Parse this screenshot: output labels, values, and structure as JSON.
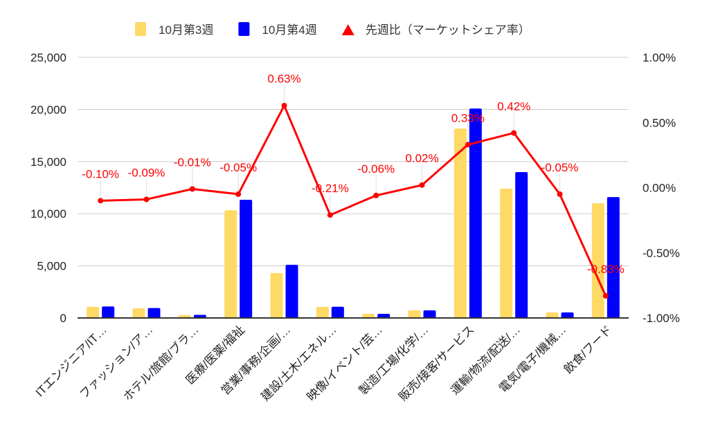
{
  "chart_data": {
    "type": "bar",
    "title": "",
    "categories": [
      "ITエンジニア/IT…",
      "ファッション/ア…",
      "ホテル/旅館/ブラ…",
      "医療/医薬/福祉",
      "営業/事務/企画/…",
      "建設/土木/エネル…",
      "映像/イベント/芸…",
      "製造/工場/化学/…",
      "販売/接客/サービス",
      "運輸/物流/配送/…",
      "電気/電子/機械…",
      "飲食/フード"
    ],
    "series": [
      {
        "name": "10月第3週",
        "type": "bar",
        "axis": "left",
        "color": "#ffd966",
        "values": [
          1060,
          930,
          270,
          10340,
          4310,
          1060,
          400,
          730,
          18170,
          12400,
          530,
          11010
        ]
      },
      {
        "name": "10月第4週",
        "type": "bar",
        "axis": "left",
        "color": "#0000ff",
        "values": [
          1100,
          950,
          300,
          11340,
          5100,
          1080,
          400,
          730,
          20090,
          13990,
          530,
          11600
        ]
      },
      {
        "name": "先週比（マーケットシェア率）",
        "type": "line",
        "axis": "right",
        "color": "#ff0000",
        "values": [
          -0.1,
          -0.09,
          -0.01,
          -0.05,
          0.63,
          -0.21,
          -0.06,
          0.02,
          0.33,
          0.42,
          -0.05,
          -0.83
        ],
        "labels": [
          "-0.10%",
          "-0.09%",
          "-0.01%",
          "-0.05%",
          "0.63%",
          "-0.21%",
          "-0.06%",
          "0.02%",
          "0.33%",
          "0.42%",
          "-0.05%",
          "-0.83%"
        ]
      }
    ],
    "left_axis": {
      "min": 0,
      "max": 25000,
      "ticks": [
        "0",
        "5,000",
        "10,000",
        "15,000",
        "20,000",
        "25,000"
      ]
    },
    "right_axis": {
      "min": -1.0,
      "max": 1.0,
      "ticks": [
        "-1.00%",
        "-0.50%",
        "0.00%",
        "0.50%",
        "1.00%"
      ]
    },
    "legend_position": "top",
    "grid": true
  }
}
